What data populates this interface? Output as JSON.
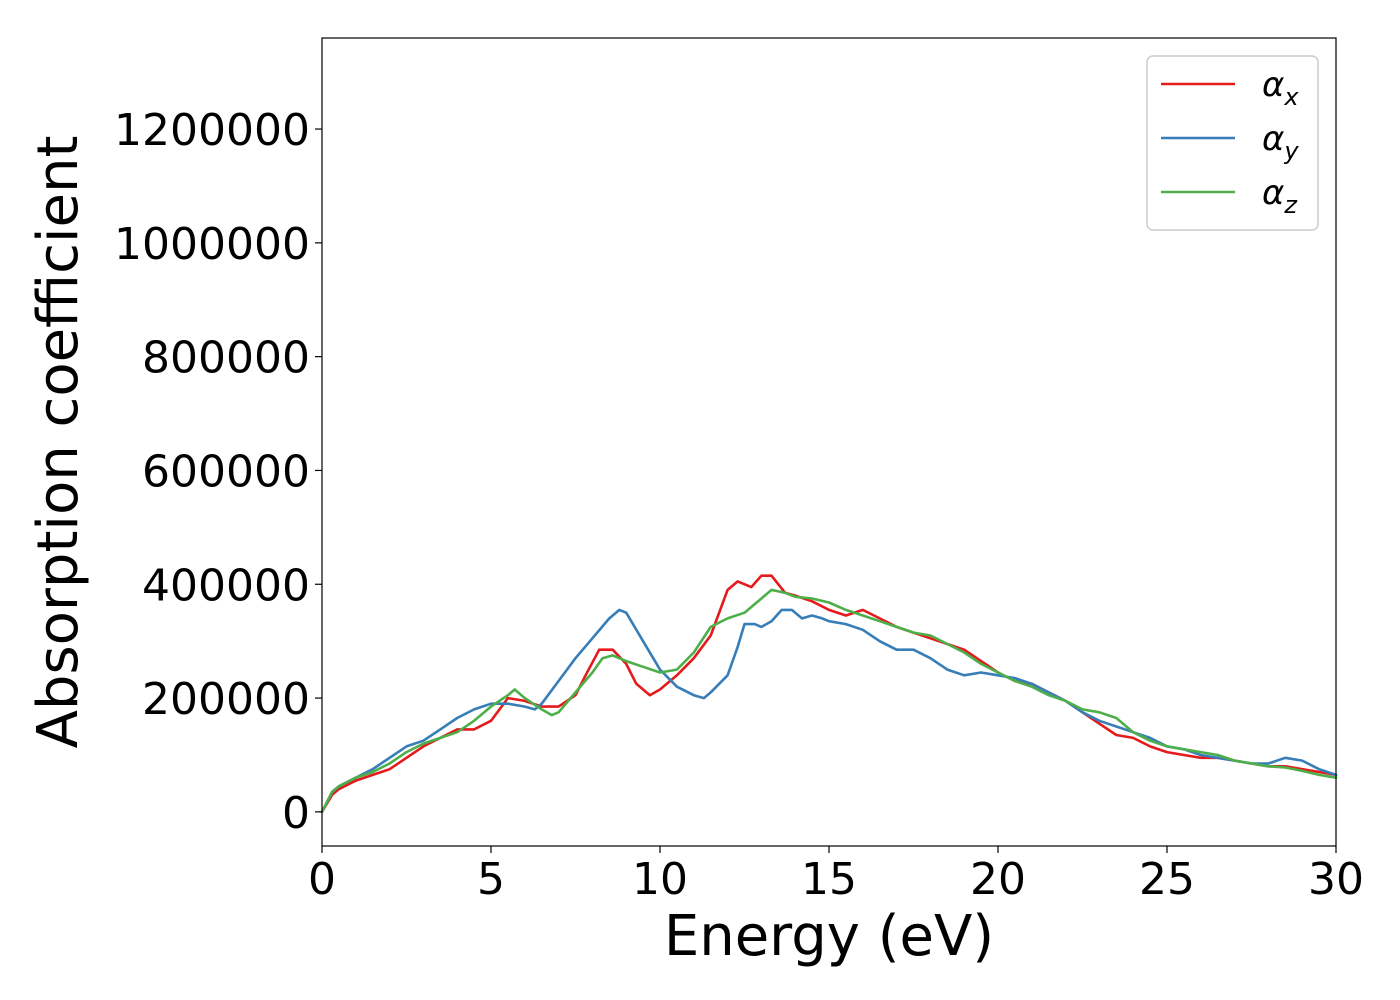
{
  "chart_data": {
    "type": "line",
    "xlabel": "Energy (eV)",
    "ylabel": "Absorption coefficient",
    "xlim": [
      0,
      30
    ],
    "ylim": [
      -60000,
      1360000
    ],
    "xticks": [
      0,
      5,
      10,
      15,
      20,
      25,
      30
    ],
    "xtick_labels": [
      "0",
      "5",
      "10",
      "15",
      "20",
      "25",
      "30"
    ],
    "yticks": [
      0,
      200000,
      400000,
      600000,
      800000,
      1000000,
      1200000
    ],
    "ytick_labels": [
      "0",
      "200000",
      "400000",
      "600000",
      "800000",
      "1000000",
      "1200000"
    ],
    "grid": false,
    "legend_position": "top-right",
    "series": [
      {
        "name": "αx",
        "legend_base": "α",
        "legend_sub": "x",
        "color": "#e41a1c",
        "x": [
          0,
          0.3,
          0.5,
          1.0,
          1.5,
          2.0,
          2.5,
          3.0,
          3.5,
          4.0,
          4.5,
          5.0,
          5.5,
          6.0,
          6.5,
          7.0,
          7.5,
          7.8,
          8.2,
          8.6,
          9.0,
          9.3,
          9.7,
          10.0,
          10.5,
          11.0,
          11.5,
          12.0,
          12.3,
          12.7,
          13.0,
          13.3,
          13.7,
          14.0,
          14.5,
          15.0,
          15.5,
          16.0,
          16.5,
          17.0,
          17.5,
          18.0,
          18.5,
          19.0,
          19.5,
          20.0,
          20.5,
          21.0,
          21.5,
          22.0,
          22.5,
          23.0,
          23.5,
          24.0,
          24.5,
          25.0,
          25.5,
          26.0,
          26.5,
          27.0,
          27.5,
          28.0,
          28.5,
          29.0,
          29.5,
          30.0
        ],
        "y": [
          0,
          30000,
          40000,
          55000,
          65000,
          75000,
          95000,
          115000,
          130000,
          145000,
          145000,
          160000,
          200000,
          195000,
          185000,
          185000,
          205000,
          240000,
          285000,
          285000,
          260000,
          225000,
          205000,
          215000,
          240000,
          270000,
          310000,
          390000,
          405000,
          395000,
          415000,
          415000,
          385000,
          380000,
          370000,
          355000,
          345000,
          355000,
          340000,
          325000,
          315000,
          305000,
          295000,
          285000,
          265000,
          245000,
          230000,
          225000,
          210000,
          195000,
          175000,
          155000,
          135000,
          130000,
          115000,
          105000,
          100000,
          95000,
          95000,
          90000,
          85000,
          80000,
          80000,
          75000,
          70000,
          65000
        ]
      },
      {
        "name": "αy",
        "legend_base": "α",
        "legend_sub": "y",
        "color": "#377eb8",
        "x": [
          0,
          0.3,
          0.5,
          1.0,
          1.5,
          2.0,
          2.5,
          3.0,
          3.5,
          4.0,
          4.5,
          5.0,
          5.5,
          6.0,
          6.3,
          6.5,
          7.0,
          7.5,
          8.0,
          8.5,
          8.8,
          9.0,
          9.5,
          10.0,
          10.5,
          11.0,
          11.3,
          11.5,
          12.0,
          12.3,
          12.5,
          12.8,
          13.0,
          13.3,
          13.6,
          13.9,
          14.2,
          14.5,
          14.8,
          15.0,
          15.5,
          16.0,
          16.5,
          17.0,
          17.5,
          18.0,
          18.5,
          19.0,
          19.5,
          20.0,
          20.5,
          21.0,
          21.5,
          22.0,
          22.5,
          23.0,
          23.5,
          24.0,
          24.5,
          25.0,
          25.5,
          26.0,
          26.5,
          27.0,
          27.5,
          28.0,
          28.5,
          29.0,
          29.5,
          30.0
        ],
        "y": [
          0,
          35000,
          45000,
          60000,
          75000,
          95000,
          115000,
          125000,
          145000,
          165000,
          180000,
          190000,
          190000,
          185000,
          180000,
          190000,
          230000,
          270000,
          305000,
          340000,
          355000,
          350000,
          300000,
          250000,
          220000,
          205000,
          200000,
          210000,
          240000,
          290000,
          330000,
          330000,
          325000,
          335000,
          355000,
          355000,
          340000,
          345000,
          340000,
          335000,
          330000,
          320000,
          300000,
          285000,
          285000,
          270000,
          250000,
          240000,
          245000,
          240000,
          235000,
          225000,
          210000,
          195000,
          175000,
          160000,
          150000,
          140000,
          130000,
          115000,
          110000,
          100000,
          95000,
          90000,
          85000,
          85000,
          95000,
          90000,
          75000,
          65000
        ]
      },
      {
        "name": "αz",
        "legend_base": "α",
        "legend_sub": "z",
        "color": "#4daf4a",
        "x": [
          0,
          0.3,
          0.5,
          1.0,
          1.5,
          2.0,
          2.5,
          3.0,
          3.5,
          4.0,
          4.5,
          5.0,
          5.5,
          5.7,
          6.0,
          6.5,
          6.8,
          7.0,
          7.5,
          8.0,
          8.3,
          8.6,
          9.0,
          9.5,
          10.0,
          10.5,
          11.0,
          11.5,
          12.0,
          12.5,
          13.0,
          13.3,
          13.7,
          14.0,
          14.5,
          15.0,
          15.5,
          16.0,
          16.5,
          17.0,
          17.5,
          18.0,
          18.5,
          19.0,
          19.5,
          20.0,
          20.5,
          21.0,
          21.5,
          22.0,
          22.5,
          23.0,
          23.5,
          24.0,
          24.5,
          25.0,
          25.5,
          26.0,
          26.5,
          27.0,
          27.5,
          28.0,
          28.5,
          29.0,
          29.5,
          30.0
        ],
        "y": [
          0,
          35000,
          45000,
          60000,
          70000,
          85000,
          105000,
          120000,
          130000,
          140000,
          160000,
          185000,
          205000,
          215000,
          200000,
          180000,
          170000,
          175000,
          210000,
          245000,
          270000,
          275000,
          265000,
          255000,
          245000,
          250000,
          280000,
          325000,
          340000,
          350000,
          375000,
          390000,
          385000,
          378000,
          375000,
          368000,
          355000,
          345000,
          335000,
          325000,
          315000,
          310000,
          295000,
          280000,
          260000,
          245000,
          230000,
          220000,
          205000,
          195000,
          180000,
          175000,
          165000,
          140000,
          125000,
          115000,
          110000,
          105000,
          100000,
          90000,
          85000,
          80000,
          78000,
          72000,
          65000,
          60000
        ]
      }
    ]
  }
}
